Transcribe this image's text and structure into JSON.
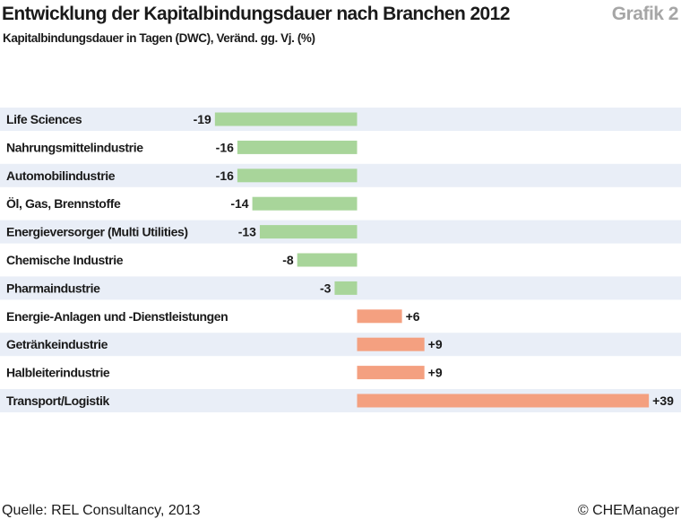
{
  "header": {
    "title": "Entwicklung der Kapitalbindungsdauer nach Branchen 2012",
    "figure_label": "Grafik 2",
    "subtitle": "Kapitalbindungsdauer in Tagen (DWC), Veränd. gg. Vj. (%)"
  },
  "footer": {
    "source": "Quelle: REL Consultancy, 2013",
    "copyright": "© CHEManager"
  },
  "colors": {
    "negative": "#a8d59a",
    "positive": "#f4a080",
    "row_band": "#e9eef7"
  },
  "chart_data": {
    "type": "bar",
    "orientation": "horizontal",
    "title": "Entwicklung der Kapitalbindungsdauer nach Branchen 2012",
    "subtitle": "Kapitalbindungsdauer in Tagen (DWC), Veränd. gg. Vj. (%)",
    "categories": [
      "Life Sciences",
      "Nahrungsmittelindustrie",
      "Automobilindustrie",
      "Öl, Gas, Brennstoffe",
      "Energieversorger (Multi Utilities)",
      "Chemische Industrie",
      "Pharmaindustrie",
      "Energie-Anlagen und -Dienstleistungen",
      "Getränkeindustrie",
      "Halbleiterindustrie",
      "Transport/Logistik"
    ],
    "values": [
      -19,
      -16,
      -16,
      -14,
      -13,
      -8,
      -3,
      6,
      9,
      9,
      39
    ],
    "data_labels": [
      "-19",
      "-16",
      "-16",
      "-14",
      "-13",
      "-8",
      "-3",
      "+6",
      "+9",
      "+9",
      "+39"
    ],
    "xlim": [
      -19,
      39
    ],
    "grid": false,
    "legend": "none"
  }
}
